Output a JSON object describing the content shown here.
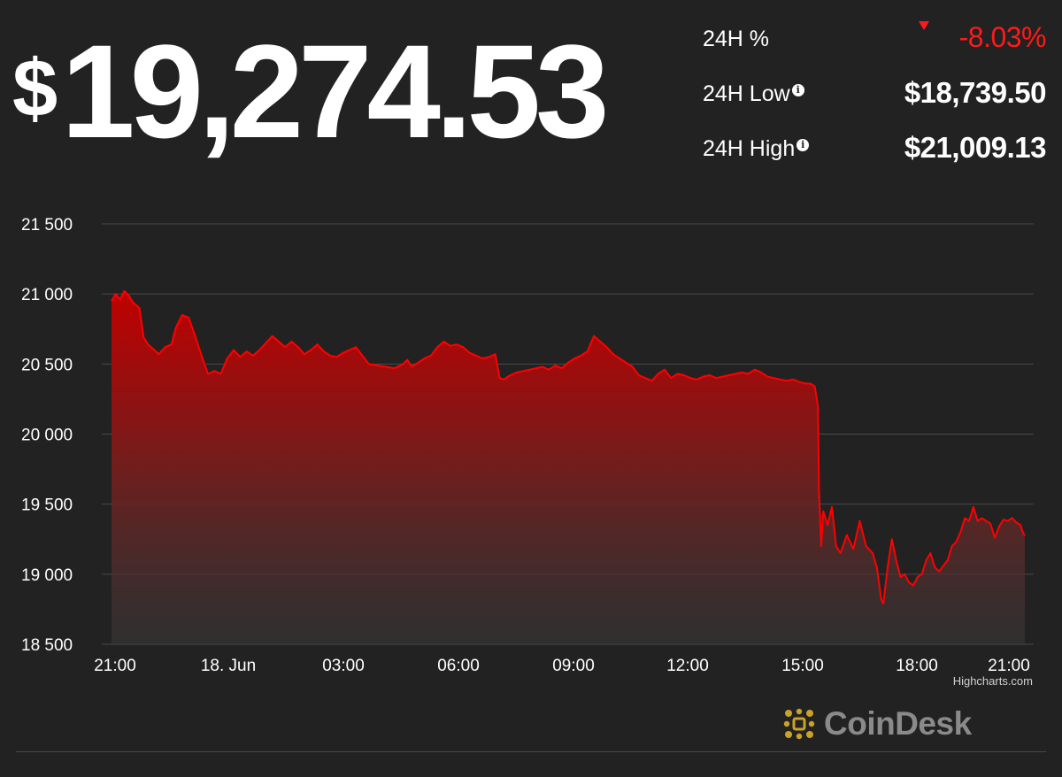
{
  "price": {
    "currency": "$",
    "value": "19,274.53"
  },
  "stats": [
    {
      "label": "24H %",
      "value": "-8.03%",
      "has_info": false,
      "direction": "down"
    },
    {
      "label": "24H Low",
      "value": "$18,739.50",
      "has_info": true
    },
    {
      "label": "24H High",
      "value": "$21,009.13",
      "has_info": true
    }
  ],
  "icons": {
    "info": "info-icon",
    "change": "down-triangle-icon",
    "brand": "coindesk-logo-icon"
  },
  "colors": {
    "background": "#222222",
    "line": "#ff0000",
    "negative": "#ff1a1a",
    "text": "#ffffff",
    "grid": "#4a4a4a",
    "brand_gold": "#c9a227"
  },
  "credit": "Highcharts.com",
  "brand": {
    "name": "CoinDesk"
  },
  "chart_data": {
    "type": "area",
    "title": "",
    "xlabel": "",
    "ylabel": "",
    "x_ticks": [
      "21:00",
      "18. Jun",
      "03:00",
      "06:00",
      "09:00",
      "12:00",
      "15:00",
      "18:00",
      "21:00"
    ],
    "y_ticks": [
      "18 500",
      "19 000",
      "19 500",
      "20 000",
      "20 500",
      "21 000",
      "21 500"
    ],
    "ylim": [
      18500,
      21500
    ],
    "x_hours": [
      0,
      24
    ],
    "grid": true,
    "legend": "none",
    "series": [
      {
        "points": [
          [
            0.0,
            20950
          ],
          [
            0.2,
            21000
          ],
          [
            0.4,
            20960
          ],
          [
            0.6,
            21020
          ],
          [
            0.8,
            20990
          ],
          [
            1.0,
            20940
          ],
          [
            1.3,
            20900
          ],
          [
            1.5,
            20690
          ],
          [
            1.7,
            20640
          ],
          [
            2.0,
            20600
          ],
          [
            2.2,
            20570
          ],
          [
            2.5,
            20620
          ],
          [
            2.8,
            20640
          ],
          [
            3.0,
            20760
          ],
          [
            3.3,
            20850
          ],
          [
            3.6,
            20830
          ],
          [
            3.9,
            20700
          ],
          [
            4.2,
            20560
          ],
          [
            4.5,
            20430
          ],
          [
            4.8,
            20450
          ],
          [
            5.1,
            20430
          ],
          [
            5.4,
            20540
          ],
          [
            5.7,
            20600
          ],
          [
            6.0,
            20550
          ],
          [
            6.3,
            20590
          ],
          [
            6.6,
            20560
          ],
          [
            6.9,
            20600
          ],
          [
            7.2,
            20650
          ],
          [
            7.5,
            20700
          ],
          [
            7.8,
            20660
          ],
          [
            8.1,
            20620
          ],
          [
            8.4,
            20660
          ],
          [
            8.7,
            20620
          ],
          [
            9.0,
            20570
          ],
          [
            9.3,
            20600
          ],
          [
            9.6,
            20640
          ],
          [
            9.9,
            20590
          ],
          [
            10.2,
            20560
          ],
          [
            10.5,
            20550
          ],
          [
            10.8,
            20580
          ],
          [
            11.1,
            20600
          ],
          [
            11.4,
            20620
          ],
          [
            11.7,
            20560
          ],
          [
            12.0,
            20500
          ],
          [
            12.4,
            20490
          ],
          [
            12.8,
            20480
          ],
          [
            13.2,
            20470
          ],
          [
            13.6,
            20500
          ],
          [
            13.8,
            20530
          ],
          [
            14.0,
            20480
          ],
          [
            14.3,
            20510
          ],
          [
            14.6,
            20540
          ],
          [
            14.9,
            20560
          ],
          [
            15.2,
            20620
          ],
          [
            15.5,
            20660
          ],
          [
            15.8,
            20630
          ],
          [
            16.1,
            20640
          ],
          [
            16.4,
            20620
          ],
          [
            16.7,
            20580
          ],
          [
            17.0,
            20560
          ],
          [
            17.3,
            20540
          ],
          [
            17.6,
            20550
          ],
          [
            17.9,
            20570
          ],
          [
            18.1,
            20400
          ],
          [
            18.3,
            20390
          ],
          [
            18.6,
            20420
          ],
          [
            18.9,
            20440
          ],
          [
            19.2,
            20450
          ],
          [
            19.5,
            20460
          ],
          [
            19.8,
            20470
          ],
          [
            20.1,
            20480
          ],
          [
            20.4,
            20460
          ],
          [
            20.7,
            20490
          ],
          [
            21.0,
            20470
          ],
          [
            21.3,
            20510
          ],
          [
            21.6,
            20540
          ],
          [
            21.9,
            20560
          ],
          [
            22.2,
            20590
          ],
          [
            22.5,
            20700
          ],
          [
            22.8,
            20660
          ],
          [
            23.1,
            20620
          ],
          [
            23.4,
            20570
          ],
          [
            23.7,
            20540
          ],
          [
            24.0,
            20510
          ],
          [
            24.3,
            20480
          ],
          [
            24.6,
            20420
          ],
          [
            24.9,
            20400
          ],
          [
            25.2,
            20380
          ],
          [
            25.5,
            20430
          ],
          [
            25.8,
            20460
          ],
          [
            26.1,
            20400
          ],
          [
            26.4,
            20430
          ],
          [
            26.7,
            20420
          ],
          [
            27.0,
            20400
          ],
          [
            27.3,
            20390
          ],
          [
            27.6,
            20410
          ],
          [
            27.9,
            20420
          ],
          [
            28.2,
            20400
          ],
          [
            28.5,
            20410
          ],
          [
            28.8,
            20420
          ],
          [
            29.1,
            20430
          ],
          [
            29.4,
            20440
          ],
          [
            29.7,
            20430
          ],
          [
            30.0,
            20460
          ],
          [
            30.3,
            20440
          ],
          [
            30.6,
            20410
          ],
          [
            30.9,
            20400
          ],
          [
            31.2,
            20390
          ],
          [
            31.5,
            20380
          ],
          [
            31.8,
            20390
          ],
          [
            32.1,
            20370
          ],
          [
            32.4,
            20360
          ],
          [
            32.6,
            20360
          ],
          [
            32.8,
            20340
          ],
          [
            32.95,
            20200
          ],
          [
            33.0,
            19600
          ],
          [
            33.1,
            19200
          ],
          [
            33.2,
            19450
          ],
          [
            33.4,
            19350
          ],
          [
            33.6,
            19480
          ],
          [
            33.8,
            19200
          ],
          [
            34.0,
            19150
          ],
          [
            34.3,
            19280
          ],
          [
            34.6,
            19180
          ],
          [
            34.9,
            19380
          ],
          [
            35.2,
            19200
          ],
          [
            35.5,
            19150
          ],
          [
            35.7,
            19050
          ],
          [
            35.9,
            18820
          ],
          [
            36.0,
            18790
          ],
          [
            36.2,
            19050
          ],
          [
            36.4,
            19250
          ],
          [
            36.6,
            19100
          ],
          [
            36.8,
            18980
          ],
          [
            37.0,
            19000
          ],
          [
            37.2,
            18940
          ],
          [
            37.4,
            18920
          ],
          [
            37.6,
            18980
          ],
          [
            37.8,
            19000
          ],
          [
            38.0,
            19100
          ],
          [
            38.2,
            19150
          ],
          [
            38.4,
            19050
          ],
          [
            38.6,
            19020
          ],
          [
            38.8,
            19060
          ],
          [
            39.0,
            19100
          ],
          [
            39.2,
            19200
          ],
          [
            39.4,
            19230
          ],
          [
            39.6,
            19300
          ],
          [
            39.8,
            19400
          ],
          [
            40.0,
            19380
          ],
          [
            40.2,
            19480
          ],
          [
            40.4,
            19380
          ],
          [
            40.6,
            19400
          ],
          [
            40.8,
            19380
          ],
          [
            41.0,
            19360
          ],
          [
            41.2,
            19260
          ],
          [
            41.4,
            19340
          ],
          [
            41.6,
            19390
          ],
          [
            41.8,
            19380
          ],
          [
            42.0,
            19400
          ],
          [
            42.2,
            19370
          ],
          [
            42.4,
            19350
          ],
          [
            42.5,
            19300
          ],
          [
            42.6,
            19274
          ]
        ]
      }
    ]
  }
}
